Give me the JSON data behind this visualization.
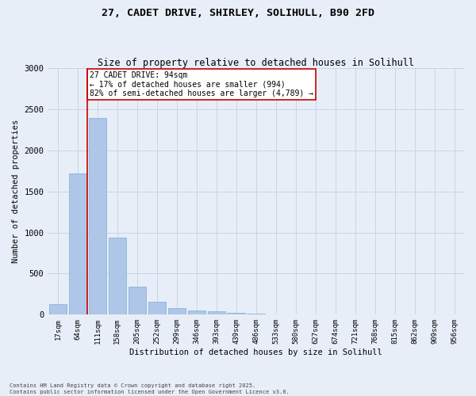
{
  "title_line1": "27, CADET DRIVE, SHIRLEY, SOLIHULL, B90 2FD",
  "title_line2": "Size of property relative to detached houses in Solihull",
  "xlabel": "Distribution of detached houses by size in Solihull",
  "ylabel": "Number of detached properties",
  "categories": [
    "17sqm",
    "64sqm",
    "111sqm",
    "158sqm",
    "205sqm",
    "252sqm",
    "299sqm",
    "346sqm",
    "393sqm",
    "439sqm",
    "486sqm",
    "533sqm",
    "580sqm",
    "627sqm",
    "674sqm",
    "721sqm",
    "768sqm",
    "815sqm",
    "862sqm",
    "909sqm",
    "956sqm"
  ],
  "values": [
    130,
    1720,
    2390,
    940,
    340,
    155,
    80,
    50,
    40,
    25,
    15,
    0,
    0,
    0,
    0,
    0,
    0,
    0,
    0,
    0,
    0
  ],
  "bar_color": "#aec6e8",
  "bar_edge_color": "#7aafd4",
  "vline_color": "#cc0000",
  "annotation_title": "27 CADET DRIVE: 94sqm",
  "annotation_line2": "← 17% of detached houses are smaller (994)",
  "annotation_line3": "82% of semi-detached houses are larger (4,789) →",
  "annotation_box_color": "#cc0000",
  "annotation_bg": "#ffffff",
  "ylim": [
    0,
    3000
  ],
  "yticks": [
    0,
    500,
    1000,
    1500,
    2000,
    2500,
    3000
  ],
  "grid_color": "#c8d4e8",
  "bg_color": "#e8eef8",
  "footer_line1": "Contains HM Land Registry data © Crown copyright and database right 2025.",
  "footer_line2": "Contains public sector information licensed under the Open Government Licence v3.0."
}
